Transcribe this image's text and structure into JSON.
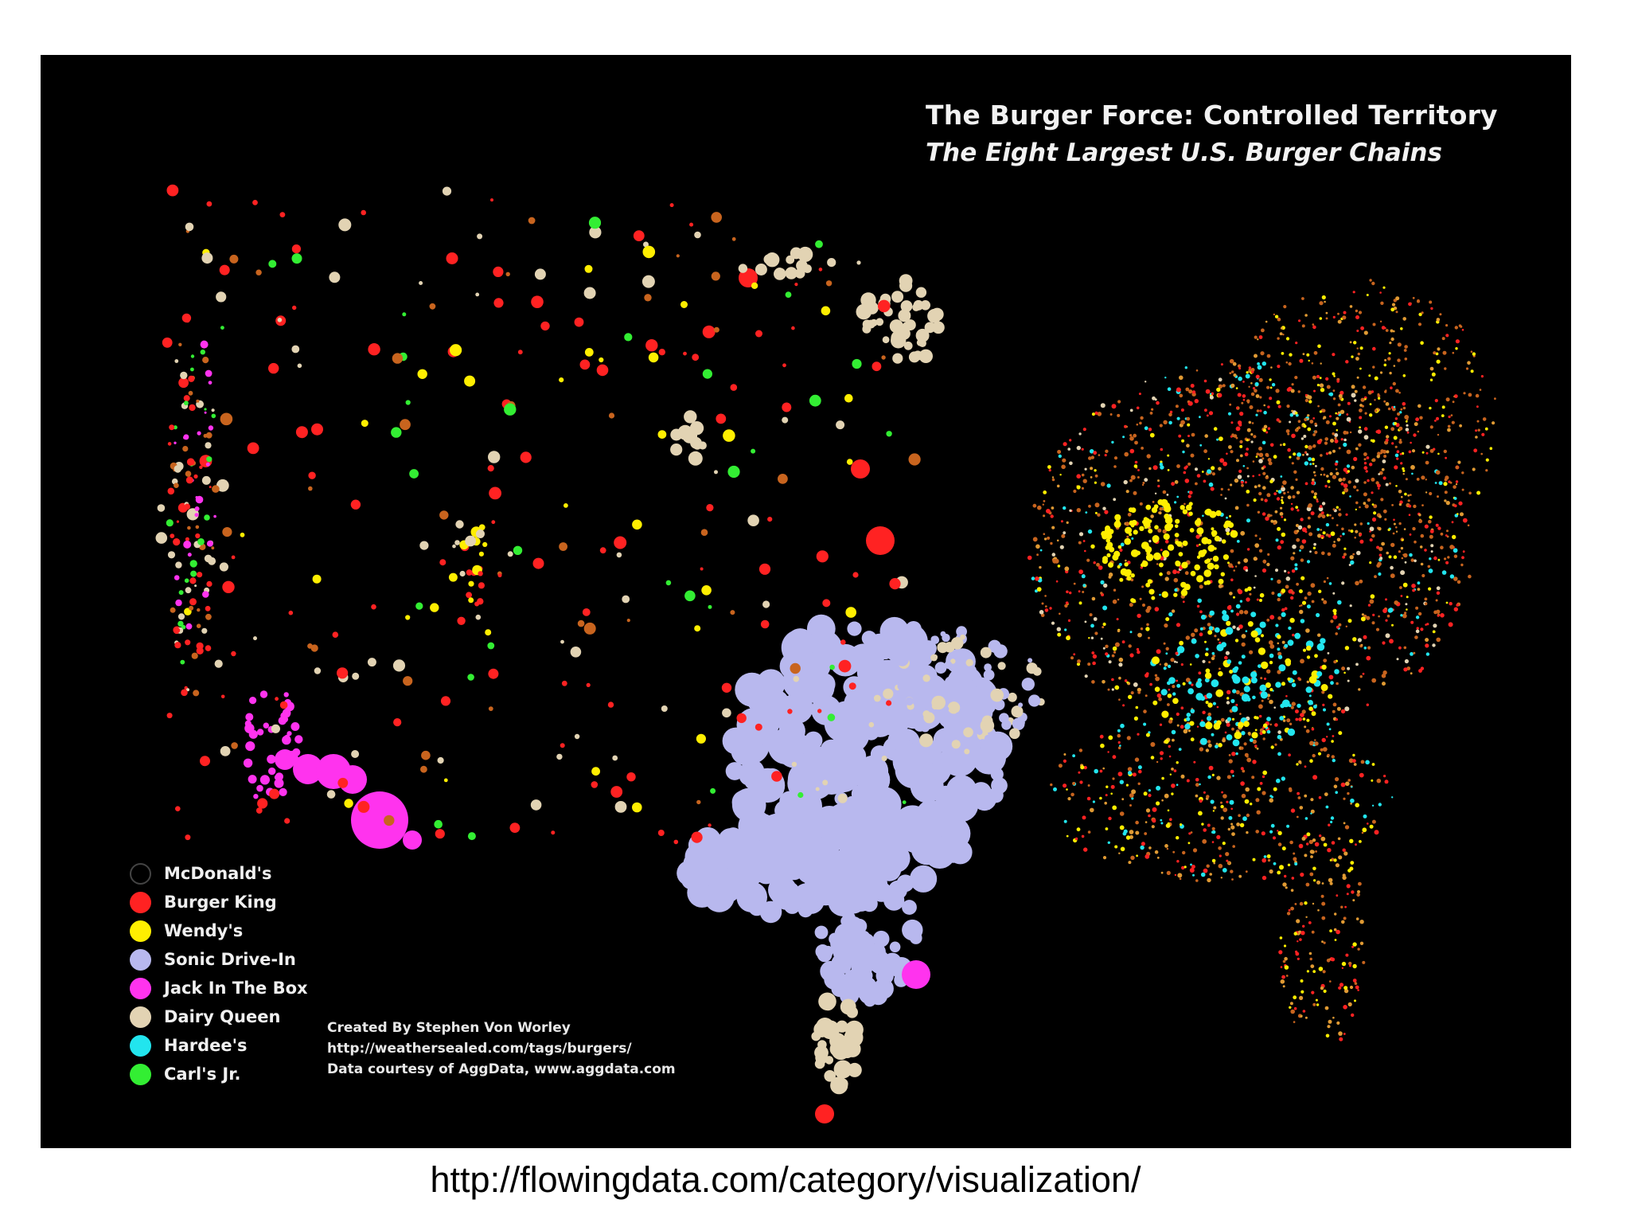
{
  "map": {
    "title": "The Burger Force:  Controlled Territory",
    "subtitle": "The Eight Largest U.S. Burger Chains",
    "background_color": "#000000"
  },
  "legend": {
    "items": [
      {
        "label": "McDonald's",
        "color": "#000000",
        "outline": "#444444"
      },
      {
        "label": "Burger King",
        "color": "#ff2222"
      },
      {
        "label": "Wendy's",
        "color": "#ffee00"
      },
      {
        "label": "Sonic Drive-In",
        "color": "#b8b8ee"
      },
      {
        "label": "Jack In The Box",
        "color": "#ff33ee"
      },
      {
        "label": "Dairy Queen",
        "color": "#e2d3b3"
      },
      {
        "label": "Hardee's",
        "color": "#22e5ee"
      },
      {
        "label": "Carl's Jr.",
        "color": "#33ee33"
      }
    ]
  },
  "credits": {
    "line1": "Created By Stephen Von Worley",
    "line2": "http://weathersealed.com/tags/burgers/",
    "line3": "Data courtesy of AggData, www.aggdata.com"
  },
  "caption": "http://flowingdata.com/category/visualization/"
}
